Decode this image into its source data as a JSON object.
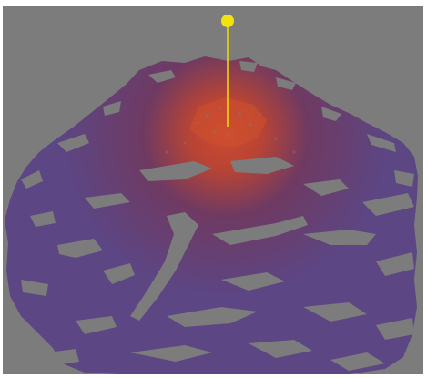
{
  "viewport": {
    "background": "#7c7c7c"
  },
  "terrain": {
    "low_color": "#5c4684",
    "mid_color": "#6f3a62",
    "high_color": "#b84434",
    "peak_color": "#cc4a30"
  },
  "marker": {
    "icon": "pin-marker-icon",
    "head_color": "#f2e30e",
    "stem_color": "#e8d80c"
  }
}
